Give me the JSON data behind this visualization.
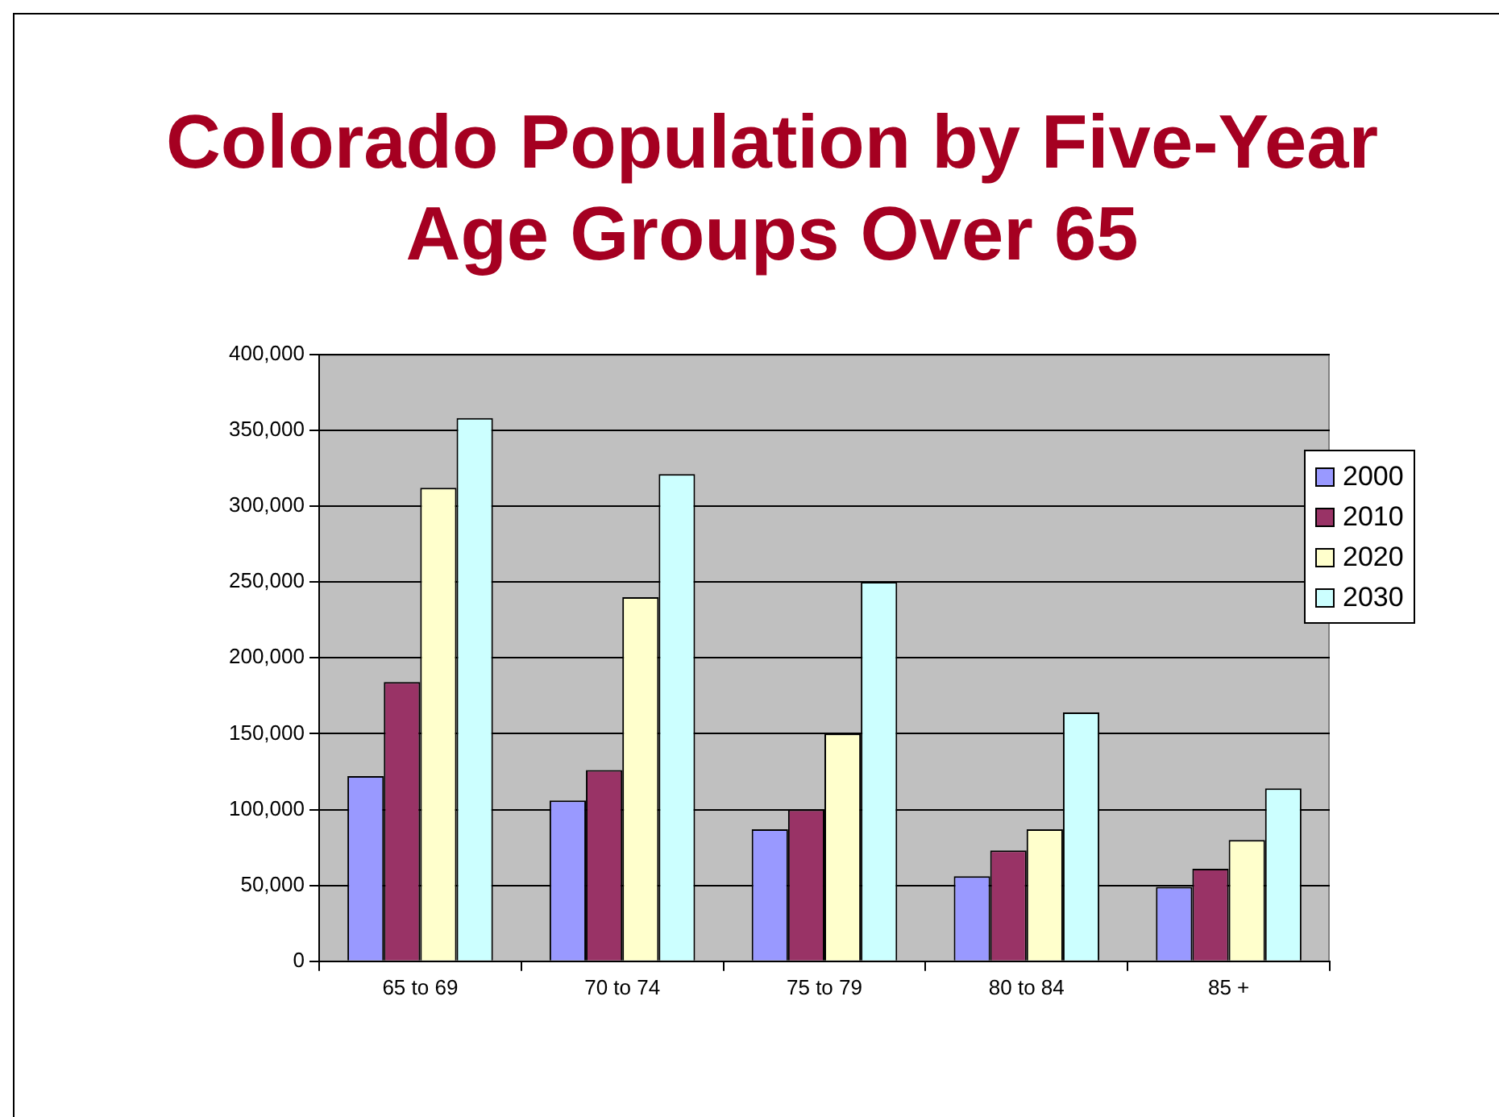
{
  "chart_data": {
    "type": "bar",
    "title": "Colorado Population by Five-Year Age Groups Over 65",
    "categories": [
      "65 to 69",
      "70 to 74",
      "75 to 79",
      "80 to 84",
      "85 +"
    ],
    "series": [
      {
        "name": "2000",
        "color": "#9999ff",
        "values": [
          122000,
          106000,
          87000,
          56000,
          49000
        ]
      },
      {
        "name": "2010",
        "color": "#993366",
        "values": [
          184000,
          126000,
          100000,
          73000,
          61000
        ]
      },
      {
        "name": "2020",
        "color": "#ffffcc",
        "values": [
          312000,
          240000,
          150000,
          87000,
          80000
        ]
      },
      {
        "name": "2030",
        "color": "#ccffff",
        "values": [
          358000,
          321000,
          250000,
          164000,
          114000
        ]
      }
    ],
    "ylim": [
      0,
      400000
    ],
    "yticks": [
      {
        "value": 0,
        "label": "0"
      },
      {
        "value": 50000,
        "label": "50,000"
      },
      {
        "value": 100000,
        "label": "100,000"
      },
      {
        "value": 150000,
        "label": "150,000"
      },
      {
        "value": 200000,
        "label": "200,000"
      },
      {
        "value": 250000,
        "label": "250,000"
      },
      {
        "value": 300000,
        "label": "300,000"
      },
      {
        "value": 350000,
        "label": "350,000"
      },
      {
        "value": 400000,
        "label": "400,000"
      }
    ],
    "grid": "y",
    "legend": "top right"
  }
}
